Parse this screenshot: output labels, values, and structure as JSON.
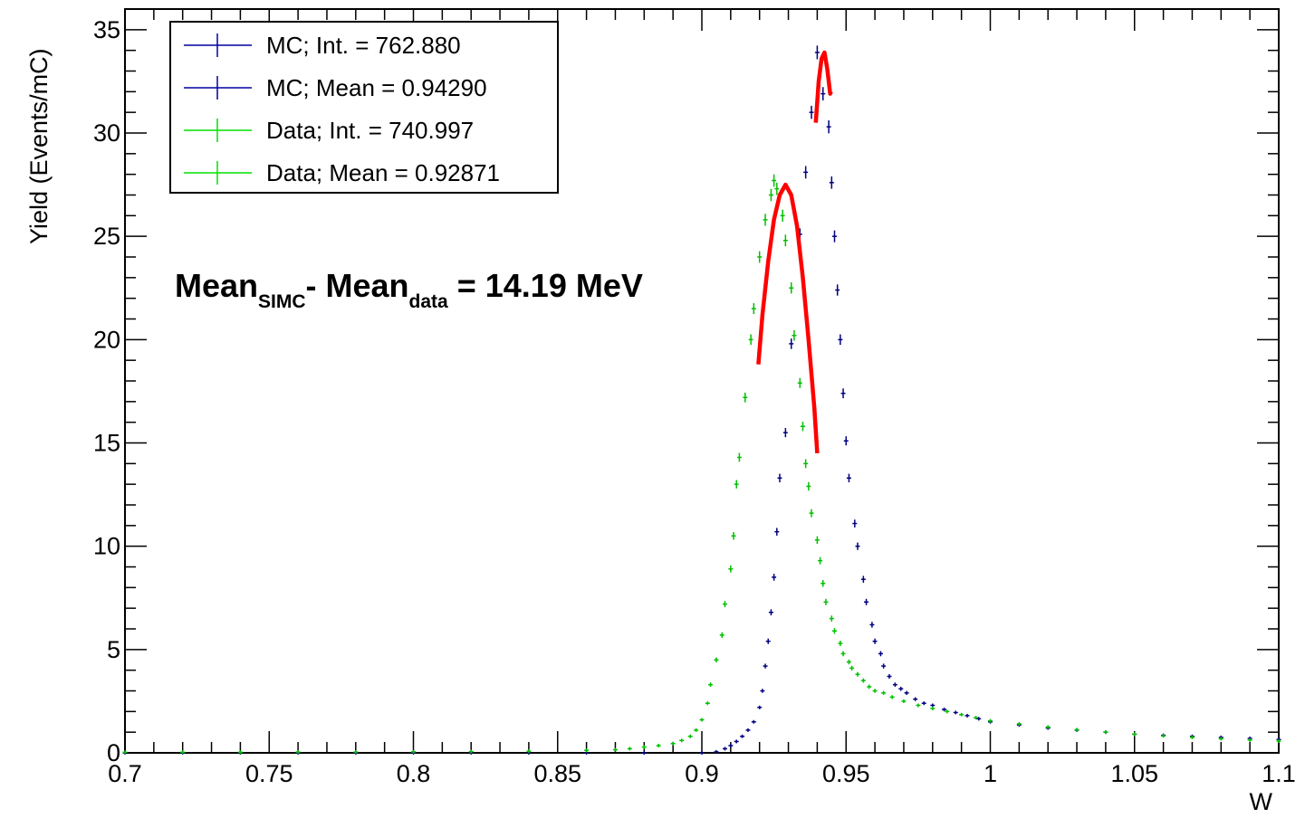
{
  "chart_data": {
    "type": "scatter",
    "title": "",
    "xlabel": "W",
    "ylabel": "Yield (Events/mC)",
    "xlim": [
      0.7,
      1.1
    ],
    "ylim": [
      0,
      36
    ],
    "x_ticks": [
      "0.7",
      "0.75",
      "0.8",
      "0.85",
      "0.9",
      "0.95",
      "1",
      "1.05",
      "1.1"
    ],
    "y_ticks": [
      "0",
      "5",
      "10",
      "15",
      "20",
      "25",
      "30",
      "35"
    ],
    "grid": false,
    "legend_position": "top-left",
    "legend": [
      {
        "label": "MC; Int. = 762.880",
        "color": "#0000a0"
      },
      {
        "label": "MC; Mean = 0.94290",
        "color": "#0000a0"
      },
      {
        "label": "Data; Int. = 740.997",
        "color": "#00e000"
      },
      {
        "label": "Data; Mean = 0.92871",
        "color": "#00e000"
      }
    ],
    "annotation": {
      "part1": "Mean",
      "sub1": "SIMC",
      "part2": "- Mean",
      "sub2": "data",
      "part3": " = 14.19 MeV"
    },
    "series": [
      {
        "name": "MC",
        "color": "#000080",
        "points": [
          [
            0.7,
            0
          ],
          [
            0.72,
            0
          ],
          [
            0.74,
            0
          ],
          [
            0.76,
            0
          ],
          [
            0.78,
            0
          ],
          [
            0.8,
            0
          ],
          [
            0.82,
            0
          ],
          [
            0.84,
            0
          ],
          [
            0.86,
            0
          ],
          [
            0.88,
            0
          ],
          [
            0.9,
            0.0
          ],
          [
            0.905,
            0.05
          ],
          [
            0.908,
            0.2
          ],
          [
            0.91,
            0.35
          ],
          [
            0.912,
            0.55
          ],
          [
            0.914,
            0.8
          ],
          [
            0.916,
            1.1
          ],
          [
            0.918,
            1.5
          ],
          [
            0.92,
            2.2
          ],
          [
            0.921,
            3.0
          ],
          [
            0.922,
            4.2
          ],
          [
            0.923,
            5.4
          ],
          [
            0.924,
            6.8
          ],
          [
            0.925,
            8.5
          ],
          [
            0.926,
            10.7
          ],
          [
            0.927,
            13.3
          ],
          [
            0.929,
            15.5
          ],
          [
            0.931,
            19.8
          ],
          [
            0.934,
            25.1
          ],
          [
            0.936,
            28.1
          ],
          [
            0.938,
            31.0
          ],
          [
            0.94,
            33.9
          ],
          [
            0.942,
            31.9
          ],
          [
            0.944,
            30.3
          ],
          [
            0.945,
            27.6
          ],
          [
            0.946,
            25.0
          ],
          [
            0.947,
            22.4
          ],
          [
            0.948,
            20.0
          ],
          [
            0.949,
            17.4
          ],
          [
            0.95,
            15.1
          ],
          [
            0.951,
            13.3
          ],
          [
            0.953,
            11.1
          ],
          [
            0.954,
            10.0
          ],
          [
            0.956,
            8.4
          ],
          [
            0.957,
            7.3
          ],
          [
            0.959,
            6.2
          ],
          [
            0.96,
            5.4
          ],
          [
            0.962,
            4.8
          ],
          [
            0.963,
            4.2
          ],
          [
            0.965,
            3.7
          ],
          [
            0.967,
            3.3
          ],
          [
            0.969,
            3.1
          ],
          [
            0.971,
            2.9
          ],
          [
            0.974,
            2.6
          ],
          [
            0.977,
            2.4
          ],
          [
            0.98,
            2.3
          ],
          [
            0.984,
            2.1
          ],
          [
            0.988,
            1.95
          ],
          [
            0.992,
            1.8
          ],
          [
            0.996,
            1.65
          ],
          [
            1.0,
            1.5
          ],
          [
            1.01,
            1.35
          ],
          [
            1.02,
            1.2
          ],
          [
            1.03,
            1.1
          ],
          [
            1.04,
            1.0
          ],
          [
            1.05,
            0.9
          ],
          [
            1.06,
            0.85
          ],
          [
            1.07,
            0.8
          ],
          [
            1.08,
            0.75
          ],
          [
            1.09,
            0.7
          ],
          [
            1.1,
            0.65
          ]
        ]
      },
      {
        "name": "Data",
        "color": "#00c000",
        "points": [
          [
            0.7,
            0.03
          ],
          [
            0.72,
            0.03
          ],
          [
            0.74,
            0.03
          ],
          [
            0.76,
            0.04
          ],
          [
            0.78,
            0.04
          ],
          [
            0.8,
            0.05
          ],
          [
            0.82,
            0.06
          ],
          [
            0.84,
            0.08
          ],
          [
            0.86,
            0.12
          ],
          [
            0.87,
            0.15
          ],
          [
            0.875,
            0.2
          ],
          [
            0.88,
            0.28
          ],
          [
            0.885,
            0.35
          ],
          [
            0.89,
            0.45
          ],
          [
            0.893,
            0.6
          ],
          [
            0.896,
            0.8
          ],
          [
            0.898,
            1.1
          ],
          [
            0.9,
            1.6
          ],
          [
            0.902,
            2.4
          ],
          [
            0.903,
            3.3
          ],
          [
            0.905,
            4.5
          ],
          [
            0.907,
            5.7
          ],
          [
            0.908,
            7.2
          ],
          [
            0.91,
            8.9
          ],
          [
            0.911,
            10.5
          ],
          [
            0.912,
            13.0
          ],
          [
            0.913,
            14.3
          ],
          [
            0.915,
            17.2
          ],
          [
            0.917,
            20.0
          ],
          [
            0.918,
            21.5
          ],
          [
            0.92,
            24.0
          ],
          [
            0.922,
            25.8
          ],
          [
            0.924,
            27.0
          ],
          [
            0.925,
            27.7
          ],
          [
            0.926,
            27.3
          ],
          [
            0.928,
            26.0
          ],
          [
            0.929,
            24.8
          ],
          [
            0.931,
            22.5
          ],
          [
            0.932,
            20.2
          ],
          [
            0.934,
            17.9
          ],
          [
            0.935,
            15.8
          ],
          [
            0.936,
            14.0
          ],
          [
            0.937,
            12.9
          ],
          [
            0.938,
            11.6
          ],
          [
            0.94,
            10.3
          ],
          [
            0.941,
            9.3
          ],
          [
            0.942,
            8.2
          ],
          [
            0.943,
            7.3
          ],
          [
            0.945,
            6.5
          ],
          [
            0.946,
            5.9
          ],
          [
            0.948,
            5.3
          ],
          [
            0.949,
            4.8
          ],
          [
            0.951,
            4.4
          ],
          [
            0.952,
            4.1
          ],
          [
            0.954,
            3.8
          ],
          [
            0.956,
            3.5
          ],
          [
            0.958,
            3.2
          ],
          [
            0.96,
            3.0
          ],
          [
            0.963,
            2.9
          ],
          [
            0.966,
            2.7
          ],
          [
            0.97,
            2.5
          ],
          [
            0.975,
            2.3
          ],
          [
            0.98,
            2.15
          ],
          [
            0.985,
            2.0
          ],
          [
            0.99,
            1.85
          ],
          [
            0.995,
            1.7
          ],
          [
            1.0,
            1.55
          ],
          [
            1.01,
            1.4
          ],
          [
            1.02,
            1.25
          ],
          [
            1.03,
            1.12
          ],
          [
            1.04,
            1.0
          ],
          [
            1.05,
            0.9
          ],
          [
            1.06,
            0.82
          ],
          [
            1.07,
            0.75
          ],
          [
            1.08,
            0.68
          ],
          [
            1.09,
            0.62
          ],
          [
            1.1,
            0.57
          ]
        ]
      }
    ],
    "fits": [
      {
        "name": "MC fit",
        "color": "#ff0000",
        "points": [
          [
            0.9395,
            30.5
          ],
          [
            0.9405,
            32.5
          ],
          [
            0.9415,
            33.6
          ],
          [
            0.9425,
            33.9
          ],
          [
            0.9435,
            33.1
          ],
          [
            0.9445,
            31.9
          ],
          [
            0.9448,
            32.0
          ]
        ]
      },
      {
        "name": "Data fit",
        "color": "#ff0000",
        "points": [
          [
            0.9196,
            18.8
          ],
          [
            0.921,
            21.2
          ],
          [
            0.923,
            23.8
          ],
          [
            0.925,
            25.8
          ],
          [
            0.927,
            27.0
          ],
          [
            0.929,
            27.5
          ],
          [
            0.931,
            27.0
          ],
          [
            0.933,
            25.5
          ],
          [
            0.935,
            23.0
          ],
          [
            0.937,
            20.0
          ],
          [
            0.939,
            16.7
          ],
          [
            0.94,
            14.5
          ]
        ]
      }
    ]
  }
}
